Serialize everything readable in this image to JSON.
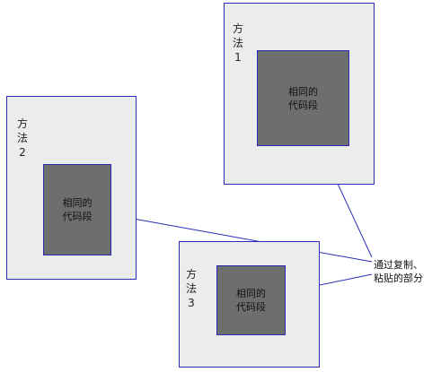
{
  "methods": [
    {
      "label_chars": [
        "方",
        "法"
      ],
      "number": "1",
      "code_text": "相同的代码段"
    },
    {
      "label_chars": [
        "方",
        "法"
      ],
      "number": "2",
      "code_text": "相同的代码段"
    },
    {
      "label_chars": [
        "方",
        "法"
      ],
      "number": "3",
      "code_text": "相同的代码段"
    }
  ],
  "note": "通过复制、粘贴的部分",
  "colors": {
    "outline": "#2b2bb8",
    "method_fill": "#ececec",
    "code_fill": "#6e6e6e"
  }
}
